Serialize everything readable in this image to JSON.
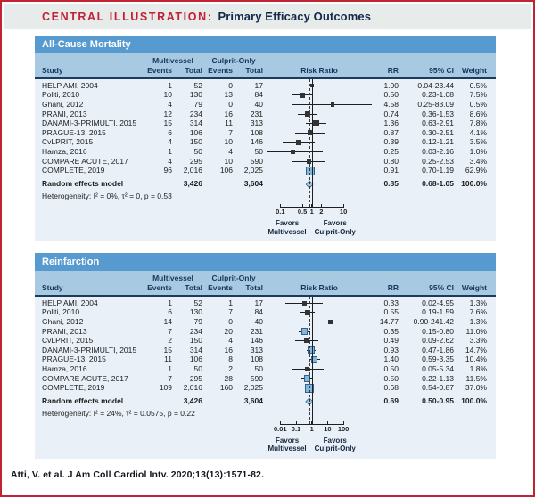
{
  "title": {
    "label": "CENTRAL ILLUSTRATION:",
    "text": "Primary Efficacy Outcomes"
  },
  "table_headers": {
    "study": "Study",
    "group1": "Multivessel",
    "group2": "Culprit-Only",
    "events": "Events",
    "total": "Total",
    "plot": "Risk Ratio",
    "rr": "RR",
    "ci": "95% CI",
    "weight": "Weight"
  },
  "chart_data": [
    {
      "type": "forest",
      "title": "All-Cause Mortality",
      "effect_measure": "Risk Ratio",
      "scale": "log",
      "studies": [
        {
          "study": "HELP AMI, 2004",
          "mv_events": "1",
          "mv_total": "52",
          "co_events": "0",
          "co_total": "17",
          "rr": 1.0,
          "ci_low": 0.04,
          "ci_high": 23.44,
          "rr_label": "1.00",
          "ci_label": "0.04-23.44",
          "weight": 0.5,
          "weight_label": "0.5%"
        },
        {
          "study": "Politi, 2010",
          "mv_events": "10",
          "mv_total": "130",
          "co_events": "13",
          "co_total": "84",
          "rr": 0.5,
          "ci_low": 0.23,
          "ci_high": 1.08,
          "rr_label": "0.50",
          "ci_label": "0.23-1.08",
          "weight": 7.5,
          "weight_label": "7.5%"
        },
        {
          "study": "Ghani, 2012",
          "mv_events": "4",
          "mv_total": "79",
          "co_events": "0",
          "co_total": "40",
          "rr": 4.58,
          "ci_low": 0.25,
          "ci_high": 83.09,
          "rr_label": "4.58",
          "ci_label": "0.25-83.09",
          "weight": 0.5,
          "weight_label": "0.5%"
        },
        {
          "study": "PRAMI, 2013",
          "mv_events": "12",
          "mv_total": "234",
          "co_events": "16",
          "co_total": "231",
          "rr": 0.74,
          "ci_low": 0.36,
          "ci_high": 1.53,
          "rr_label": "0.74",
          "ci_label": "0.36-1.53",
          "weight": 8.6,
          "weight_label": "8.6%"
        },
        {
          "study": "DANAMI-3-PRIMULTI, 2015",
          "mv_events": "15",
          "mv_total": "314",
          "co_events": "11",
          "co_total": "313",
          "rr": 1.36,
          "ci_low": 0.63,
          "ci_high": 2.91,
          "rr_label": "1.36",
          "ci_label": "0.63-2.91",
          "weight": 7.8,
          "weight_label": "7.8%"
        },
        {
          "study": "PRAGUE-13, 2015",
          "mv_events": "6",
          "mv_total": "106",
          "co_events": "7",
          "co_total": "108",
          "rr": 0.87,
          "ci_low": 0.3,
          "ci_high": 2.51,
          "rr_label": "0.87",
          "ci_label": "0.30-2.51",
          "weight": 4.1,
          "weight_label": "4.1%"
        },
        {
          "study": "CvLPRIT, 2015",
          "mv_events": "4",
          "mv_total": "150",
          "co_events": "10",
          "co_total": "146",
          "rr": 0.39,
          "ci_low": 0.12,
          "ci_high": 1.21,
          "rr_label": "0.39",
          "ci_label": "0.12-1.21",
          "weight": 3.5,
          "weight_label": "3.5%"
        },
        {
          "study": "Hamza, 2016",
          "mv_events": "1",
          "mv_total": "50",
          "co_events": "4",
          "co_total": "50",
          "rr": 0.25,
          "ci_low": 0.03,
          "ci_high": 2.16,
          "rr_label": "0.25",
          "ci_label": "0.03-2.16",
          "weight": 1.0,
          "weight_label": "1.0%"
        },
        {
          "study": "COMPARE ACUTE, 2017",
          "mv_events": "4",
          "mv_total": "295",
          "co_events": "10",
          "co_total": "590",
          "rr": 0.8,
          "ci_low": 0.25,
          "ci_high": 2.53,
          "rr_label": "0.80",
          "ci_label": "0.25-2.53",
          "weight": 3.4,
          "weight_label": "3.4%"
        },
        {
          "study": "COMPLETE, 2019",
          "mv_events": "96",
          "mv_total": "2,016",
          "co_events": "106",
          "co_total": "2,025",
          "rr": 0.91,
          "ci_low": 0.7,
          "ci_high": 1.19,
          "rr_label": "0.91",
          "ci_label": "0.70-1.19",
          "weight": 62.9,
          "weight_label": "62.9%"
        }
      ],
      "summary": {
        "label": "Random effects model",
        "mv_total": "3,426",
        "co_total": "3,604",
        "rr": 0.85,
        "ci_low": 0.68,
        "ci_high": 1.05,
        "rr_label": "0.85",
        "ci_label": "0.68-1.05",
        "weight_label": "100.0%"
      },
      "heterogeneity": "Heterogeneity: I² = 0%, τ² = 0, p = 0.53",
      "axis": {
        "ticks": [
          0.1,
          0.5,
          1,
          2,
          10
        ],
        "tick_labels": [
          "0.1",
          "0.5",
          "1",
          "2",
          "10"
        ],
        "ref_line": 1,
        "favors_left": [
          "Favors",
          "Multivessel"
        ],
        "favors_right": [
          "Favors",
          "Culprit-Only"
        ]
      }
    },
    {
      "type": "forest",
      "title": "Reinfarction",
      "effect_measure": "Risk Ratio",
      "scale": "log",
      "studies": [
        {
          "study": "HELP AMI, 2004",
          "mv_events": "1",
          "mv_total": "52",
          "co_events": "1",
          "co_total": "17",
          "rr": 0.33,
          "ci_low": 0.02,
          "ci_high": 4.95,
          "rr_label": "0.33",
          "ci_label": "0.02-4.95",
          "weight": 1.3,
          "weight_label": "1.3%"
        },
        {
          "study": "Politi, 2010",
          "mv_events": "6",
          "mv_total": "130",
          "co_events": "7",
          "co_total": "84",
          "rr": 0.55,
          "ci_low": 0.19,
          "ci_high": 1.59,
          "rr_label": "0.55",
          "ci_label": "0.19-1.59",
          "weight": 7.6,
          "weight_label": "7.6%"
        },
        {
          "study": "Ghani, 2012",
          "mv_events": "14",
          "mv_total": "79",
          "co_events": "0",
          "co_total": "40",
          "rr": 14.77,
          "ci_low": 0.9,
          "ci_high": 241.42,
          "rr_label": "14.77",
          "ci_label": "0.90-241.42",
          "weight": 1.3,
          "weight_label": "1.3%"
        },
        {
          "study": "PRAMI, 2013",
          "mv_events": "7",
          "mv_total": "234",
          "co_events": "20",
          "co_total": "231",
          "rr": 0.35,
          "ci_low": 0.15,
          "ci_high": 0.8,
          "rr_label": "0.35",
          "ci_label": "0.15-0.80",
          "weight": 11.0,
          "weight_label": "11.0%"
        },
        {
          "study": "CvLPRIT, 2015",
          "mv_events": "2",
          "mv_total": "150",
          "co_events": "4",
          "co_total": "146",
          "rr": 0.49,
          "ci_low": 0.09,
          "ci_high": 2.62,
          "rr_label": "0.49",
          "ci_label": "0.09-2.62",
          "weight": 3.3,
          "weight_label": "3.3%"
        },
        {
          "study": "DANAMI-3-PRIMULTI, 2015",
          "mv_events": "15",
          "mv_total": "314",
          "co_events": "16",
          "co_total": "313",
          "rr": 0.93,
          "ci_low": 0.47,
          "ci_high": 1.86,
          "rr_label": "0.93",
          "ci_label": "0.47-1.86",
          "weight": 14.7,
          "weight_label": "14.7%"
        },
        {
          "study": "PRAGUE-13, 2015",
          "mv_events": "11",
          "mv_total": "106",
          "co_events": "8",
          "co_total": "108",
          "rr": 1.4,
          "ci_low": 0.59,
          "ci_high": 3.35,
          "rr_label": "1.40",
          "ci_label": "0.59-3.35",
          "weight": 10.4,
          "weight_label": "10.4%"
        },
        {
          "study": "Hamza, 2016",
          "mv_events": "1",
          "mv_total": "50",
          "co_events": "2",
          "co_total": "50",
          "rr": 0.5,
          "ci_low": 0.05,
          "ci_high": 5.34,
          "rr_label": "0.50",
          "ci_label": "0.05-5.34",
          "weight": 1.8,
          "weight_label": "1.8%"
        },
        {
          "study": "COMPARE ACUTE, 2017",
          "mv_events": "7",
          "mv_total": "295",
          "co_events": "28",
          "co_total": "590",
          "rr": 0.5,
          "ci_low": 0.22,
          "ci_high": 1.13,
          "rr_label": "0.50",
          "ci_label": "0.22-1.13",
          "weight": 11.5,
          "weight_label": "11.5%"
        },
        {
          "study": "COMPLETE, 2019",
          "mv_events": "109",
          "mv_total": "2,016",
          "co_events": "160",
          "co_total": "2,025",
          "rr": 0.68,
          "ci_low": 0.54,
          "ci_high": 0.87,
          "rr_label": "0.68",
          "ci_label": "0.54-0.87",
          "weight": 37.0,
          "weight_label": "37.0%"
        }
      ],
      "summary": {
        "label": "Random effects model",
        "mv_total": "3,426",
        "co_total": "3,604",
        "rr": 0.69,
        "ci_low": 0.5,
        "ci_high": 0.95,
        "rr_label": "0.69",
        "ci_label": "0.50-0.95",
        "weight_label": "100.0%"
      },
      "heterogeneity": "Heterogeneity: I² = 24%, τ² = 0.0575, p = 0.22",
      "axis": {
        "ticks": [
          0.01,
          0.1,
          1,
          10,
          100
        ],
        "tick_labels": [
          "0.01",
          "0.1",
          "1",
          "10",
          "100"
        ],
        "ref_line": 1,
        "favors_left": [
          "Favors",
          "Multivessel"
        ],
        "favors_right": [
          "Favors",
          "Culprit-Only"
        ]
      }
    }
  ],
  "footer": {
    "citation": "Atti, V. et al. J Am Coll Cardiol Intv. 2020;13(13):1571-82."
  },
  "colors": {
    "frame_border_red": "#c02433",
    "title_red": "#c41f33",
    "title_navy": "#12294b",
    "titlebar_bg": "#e7ebea",
    "section_bar_blue": "#569acf",
    "header_band_blue": "#a7c9e2",
    "panel_bg": "#e9f0f7",
    "header_text_navy": "#17365c",
    "rule_navy": "#1c3a5c",
    "marker_dark": "#333333",
    "marker_blue": "#85b7d9",
    "diamond_fill": "#9fc6e2"
  }
}
